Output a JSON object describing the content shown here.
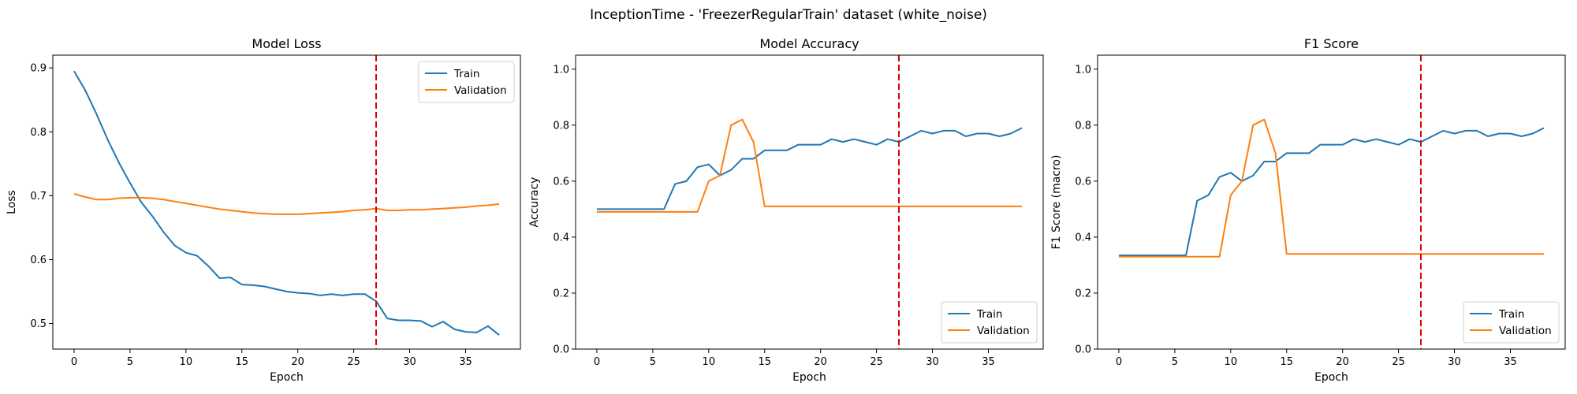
{
  "figure": {
    "suptitle": "InceptionTime - 'FreezerRegularTrain' dataset (white_noise)"
  },
  "colors": {
    "train": "#1f77b4",
    "validation": "#ff7f0e",
    "marker_line": "#e00000"
  },
  "chart_data": [
    {
      "type": "line",
      "title": "Model Loss",
      "xlabel": "Epoch",
      "ylabel": "Loss",
      "xlim": [
        -1.9,
        39.9
      ],
      "ylim": [
        0.46,
        0.92
      ],
      "xticks": [
        0,
        5,
        10,
        15,
        20,
        25,
        30,
        35
      ],
      "yticks": [
        0.5,
        0.6,
        0.7,
        0.8,
        0.9
      ],
      "ytick_labels": [
        "0.5",
        "0.6",
        "0.7",
        "0.8",
        "0.9"
      ],
      "vline_x": 27,
      "legend": {
        "position": "upper right",
        "entries": [
          "Train",
          "Validation"
        ]
      },
      "x": [
        0,
        1,
        2,
        3,
        4,
        5,
        6,
        7,
        8,
        9,
        10,
        11,
        12,
        13,
        14,
        15,
        16,
        17,
        18,
        19,
        20,
        21,
        22,
        23,
        24,
        25,
        26,
        27,
        28,
        29,
        30,
        31,
        32,
        33,
        34,
        35,
        36,
        37,
        38
      ],
      "series": [
        {
          "name": "Train",
          "values": [
            0.895,
            0.865,
            0.828,
            0.788,
            0.752,
            0.72,
            0.69,
            0.668,
            0.643,
            0.622,
            0.611,
            0.606,
            0.59,
            0.571,
            0.572,
            0.561,
            0.56,
            0.558,
            0.554,
            0.55,
            0.548,
            0.547,
            0.544,
            0.546,
            0.544,
            0.546,
            0.546,
            0.535,
            0.508,
            0.505,
            0.505,
            0.504,
            0.495,
            0.503,
            0.491,
            0.487,
            0.486,
            0.496,
            0.482
          ]
        },
        {
          "name": "Validation",
          "values": [
            0.703,
            0.698,
            0.694,
            0.694,
            0.696,
            0.697,
            0.697,
            0.696,
            0.694,
            0.691,
            0.688,
            0.685,
            0.682,
            0.679,
            0.677,
            0.675,
            0.673,
            0.672,
            0.671,
            0.671,
            0.671,
            0.672,
            0.673,
            0.674,
            0.675,
            0.677,
            0.678,
            0.68,
            0.677,
            0.677,
            0.678,
            0.678,
            0.679,
            0.68,
            0.681,
            0.682,
            0.684,
            0.685,
            0.687
          ]
        }
      ]
    },
    {
      "type": "line",
      "title": "Model Accuracy",
      "xlabel": "Epoch",
      "ylabel": "Accuracy",
      "xlim": [
        -1.9,
        39.9
      ],
      "ylim": [
        0.0,
        1.05
      ],
      "xticks": [
        0,
        5,
        10,
        15,
        20,
        25,
        30,
        35
      ],
      "yticks": [
        0.0,
        0.2,
        0.4,
        0.6,
        0.8,
        1.0
      ],
      "ytick_labels": [
        "0.0",
        "0.2",
        "0.4",
        "0.6",
        "0.8",
        "1.0"
      ],
      "vline_x": 27,
      "legend": {
        "position": "lower right",
        "entries": [
          "Train",
          "Validation"
        ]
      },
      "x": [
        0,
        1,
        2,
        3,
        4,
        5,
        6,
        7,
        8,
        9,
        10,
        11,
        12,
        13,
        14,
        15,
        16,
        17,
        18,
        19,
        20,
        21,
        22,
        23,
        24,
        25,
        26,
        27,
        28,
        29,
        30,
        31,
        32,
        33,
        34,
        35,
        36,
        37,
        38
      ],
      "series": [
        {
          "name": "Train",
          "values": [
            0.5,
            0.5,
            0.5,
            0.5,
            0.5,
            0.5,
            0.5,
            0.59,
            0.6,
            0.65,
            0.66,
            0.62,
            0.64,
            0.68,
            0.68,
            0.71,
            0.71,
            0.71,
            0.73,
            0.73,
            0.73,
            0.75,
            0.74,
            0.75,
            0.74,
            0.73,
            0.75,
            0.74,
            0.76,
            0.78,
            0.77,
            0.78,
            0.78,
            0.76,
            0.77,
            0.77,
            0.76,
            0.77,
            0.79
          ]
        },
        {
          "name": "Validation",
          "values": [
            0.49,
            0.49,
            0.49,
            0.49,
            0.49,
            0.49,
            0.49,
            0.49,
            0.49,
            0.49,
            0.6,
            0.62,
            0.8,
            0.82,
            0.74,
            0.51,
            0.51,
            0.51,
            0.51,
            0.51,
            0.51,
            0.51,
            0.51,
            0.51,
            0.51,
            0.51,
            0.51,
            0.51,
            0.51,
            0.51,
            0.51,
            0.51,
            0.51,
            0.51,
            0.51,
            0.51,
            0.51,
            0.51,
            0.51
          ]
        }
      ]
    },
    {
      "type": "line",
      "title": "F1 Score",
      "xlabel": "Epoch",
      "ylabel": "F1 Score (macro)",
      "xlim": [
        -1.9,
        39.9
      ],
      "ylim": [
        0.0,
        1.05
      ],
      "xticks": [
        0,
        5,
        10,
        15,
        20,
        25,
        30,
        35
      ],
      "yticks": [
        0.0,
        0.2,
        0.4,
        0.6,
        0.8,
        1.0
      ],
      "ytick_labels": [
        "0.0",
        "0.2",
        "0.4",
        "0.6",
        "0.8",
        "1.0"
      ],
      "vline_x": 27,
      "legend": {
        "position": "lower right",
        "entries": [
          "Train",
          "Validation"
        ]
      },
      "x": [
        0,
        1,
        2,
        3,
        4,
        5,
        6,
        7,
        8,
        9,
        10,
        11,
        12,
        13,
        14,
        15,
        16,
        17,
        18,
        19,
        20,
        21,
        22,
        23,
        24,
        25,
        26,
        27,
        28,
        29,
        30,
        31,
        32,
        33,
        34,
        35,
        36,
        37,
        38
      ],
      "series": [
        {
          "name": "Train",
          "values": [
            0.335,
            0.335,
            0.335,
            0.335,
            0.335,
            0.335,
            0.335,
            0.53,
            0.55,
            0.615,
            0.63,
            0.6,
            0.62,
            0.67,
            0.67,
            0.7,
            0.7,
            0.7,
            0.73,
            0.73,
            0.73,
            0.75,
            0.74,
            0.75,
            0.74,
            0.73,
            0.75,
            0.74,
            0.76,
            0.78,
            0.77,
            0.78,
            0.78,
            0.76,
            0.77,
            0.77,
            0.76,
            0.77,
            0.79
          ]
        },
        {
          "name": "Validation",
          "values": [
            0.33,
            0.33,
            0.33,
            0.33,
            0.33,
            0.33,
            0.33,
            0.33,
            0.33,
            0.33,
            0.55,
            0.6,
            0.8,
            0.82,
            0.7,
            0.34,
            0.34,
            0.34,
            0.34,
            0.34,
            0.34,
            0.34,
            0.34,
            0.34,
            0.34,
            0.34,
            0.34,
            0.34,
            0.34,
            0.34,
            0.34,
            0.34,
            0.34,
            0.34,
            0.34,
            0.34,
            0.34,
            0.34,
            0.34
          ]
        }
      ]
    }
  ]
}
